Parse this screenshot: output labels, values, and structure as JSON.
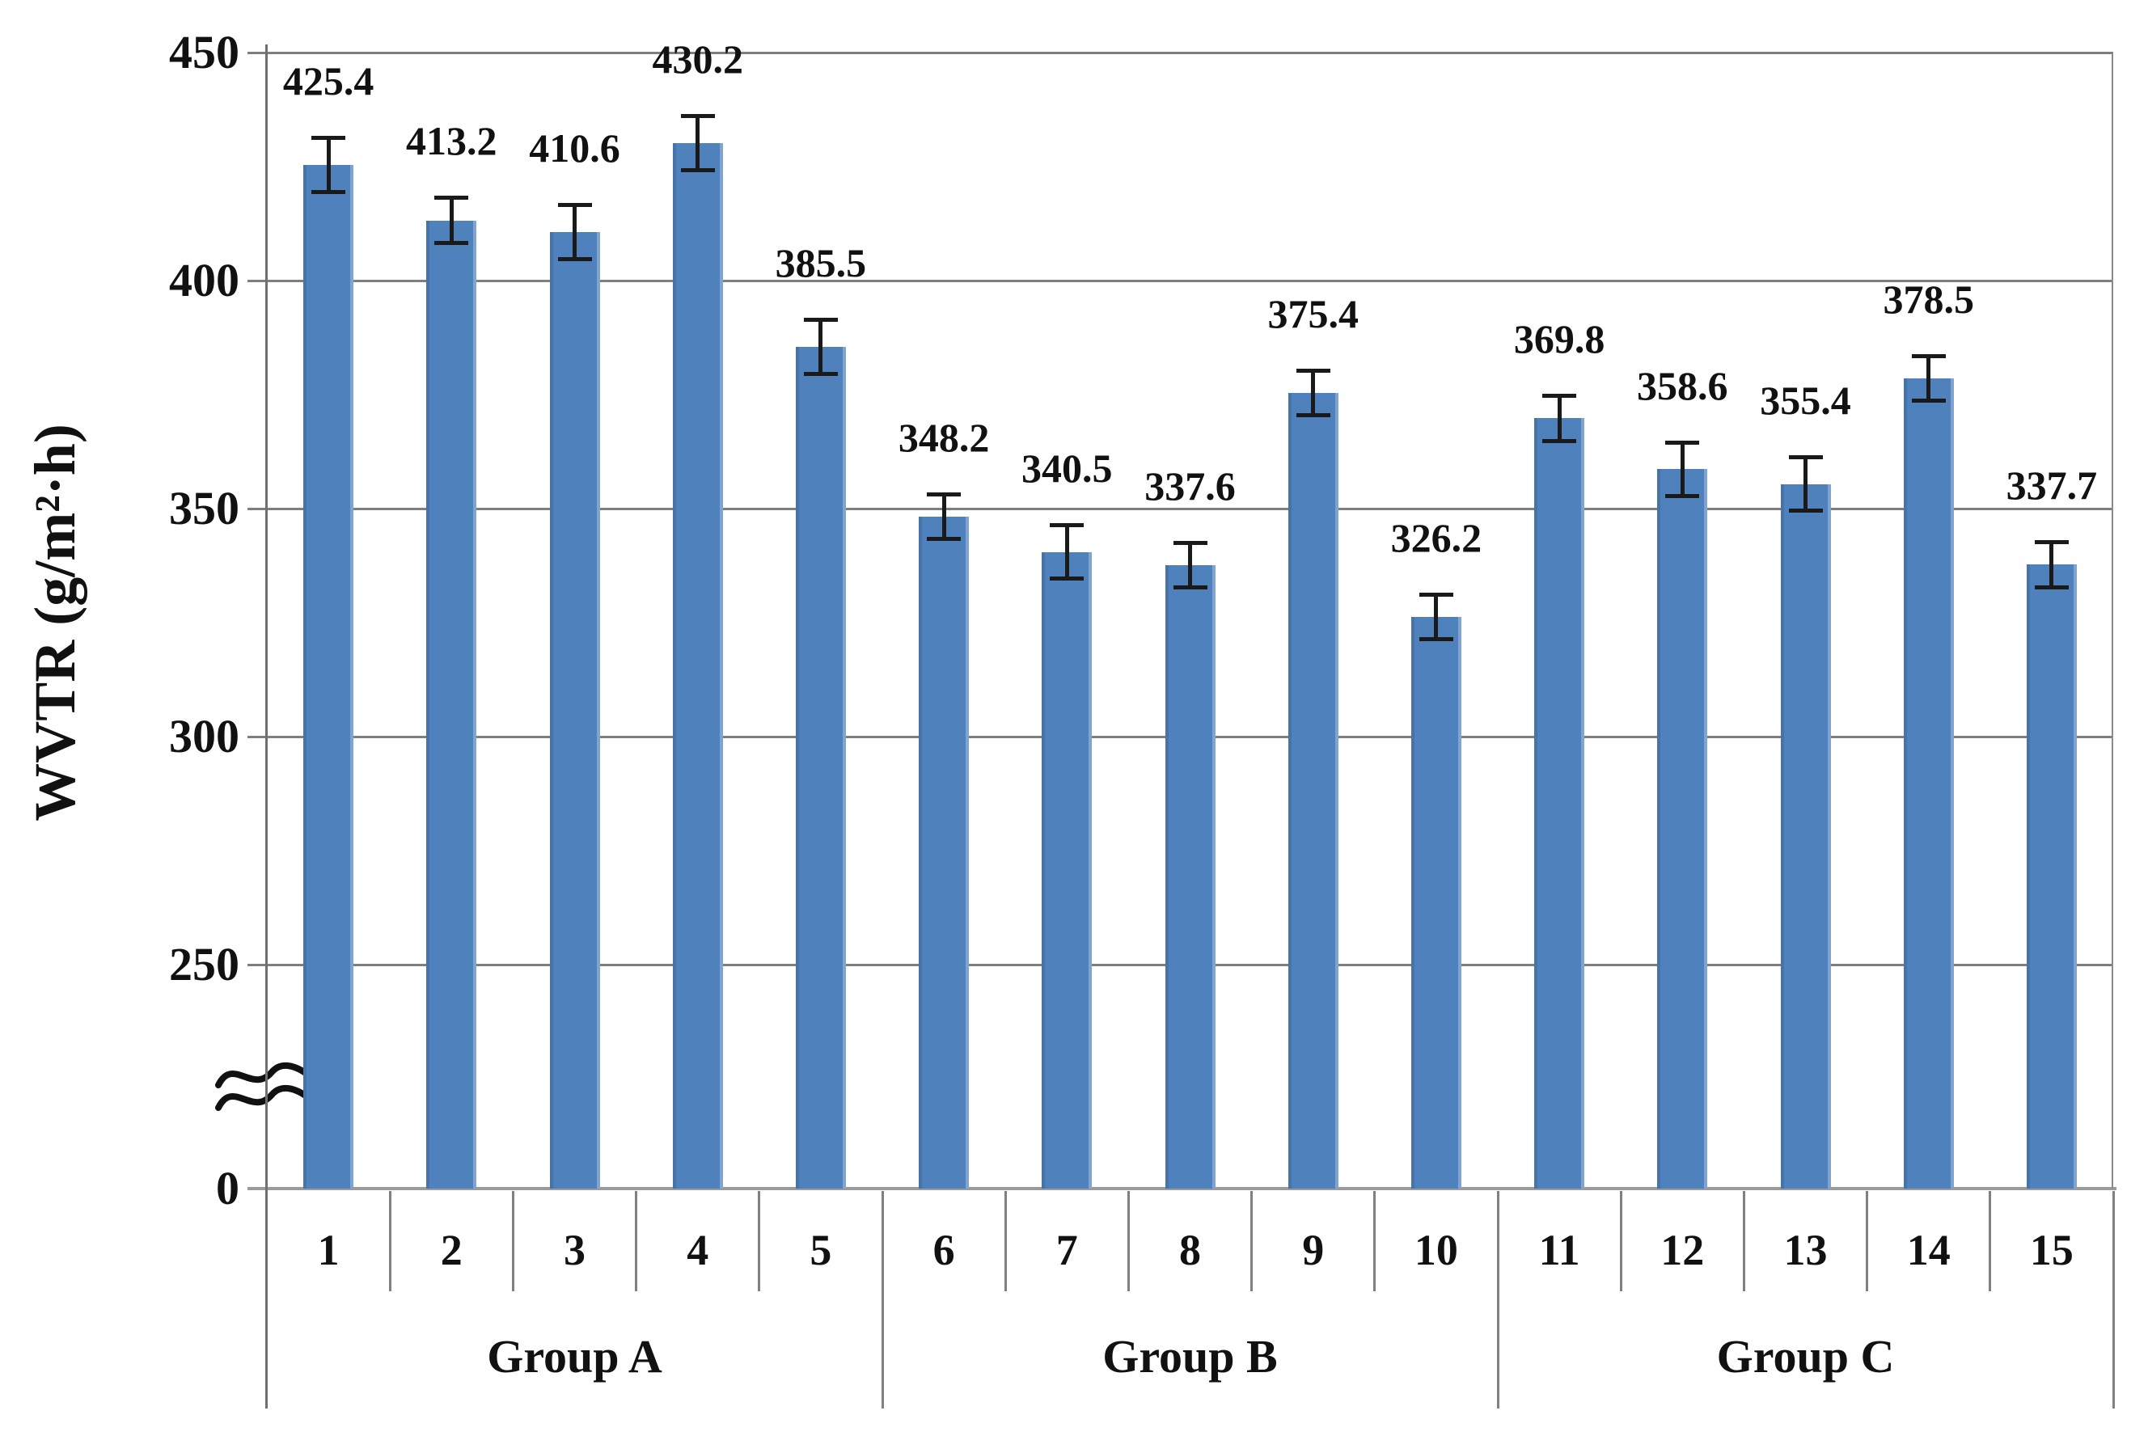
{
  "axis": {
    "y_label": "WVTR (g/m²·h)",
    "y_ticks": [
      "450",
      "400",
      "350",
      "300",
      "250",
      "0"
    ],
    "y_tick_values": [
      450,
      400,
      350,
      300,
      250,
      0
    ],
    "broken_axis": true
  },
  "chart_data": {
    "type": "bar",
    "title": "",
    "xlabel": "",
    "ylabel": "WVTR (g/m²·h)",
    "categories": [
      "1",
      "2",
      "3",
      "4",
      "5",
      "6",
      "7",
      "8",
      "9",
      "10",
      "11",
      "12",
      "13",
      "14",
      "15"
    ],
    "values": [
      425.4,
      413.2,
      410.6,
      430.2,
      385.5,
      348.2,
      340.5,
      337.6,
      375.4,
      326.2,
      369.8,
      358.6,
      355.4,
      378.5,
      337.7
    ],
    "data_labels": [
      "425.4",
      "413.2",
      "410.6",
      "430.2",
      "385.5",
      "348.2",
      "340.5",
      "337.6",
      "375.4",
      "326.2",
      "369.8",
      "358.6",
      "355.4",
      "378.5",
      "337.7"
    ],
    "error_bars_estimated": [
      6,
      5,
      6,
      6,
      6,
      5,
      6,
      5,
      5,
      5,
      5,
      6,
      6,
      5,
      5
    ],
    "groups": [
      {
        "label": "Group A",
        "categories": [
          "1",
          "2",
          "3",
          "4",
          "5"
        ]
      },
      {
        "label": "Group B",
        "categories": [
          "6",
          "7",
          "8",
          "9",
          "10"
        ]
      },
      {
        "label": "Group C",
        "categories": [
          "11",
          "12",
          "13",
          "14",
          "15"
        ]
      }
    ],
    "y_axis": {
      "upper_segment_range": [
        250,
        450
      ],
      "lower_segment_value": 0,
      "tick_step": 50,
      "break_between": [
        0,
        250
      ]
    },
    "grid": true,
    "legend": false,
    "colors": {
      "bar_fill": "#4f81bd",
      "gridline": "#7f7f7f",
      "axis_line": "#6f6f6f",
      "error_bar": "#1a1a1a",
      "text": "#111111"
    }
  }
}
